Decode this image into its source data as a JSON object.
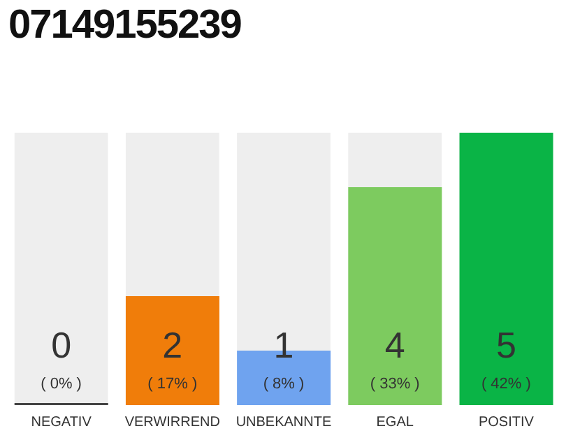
{
  "chart_data": {
    "type": "bar",
    "title": "07149155239",
    "categories": [
      "NEGATIV",
      "VERWIRREND",
      "UNBEKANNTE",
      "EGAL",
      "POSITIV"
    ],
    "values": [
      0,
      2,
      1,
      4,
      5
    ],
    "colors": [
      "#444444",
      "#f07d0a",
      "#6fa3ef",
      "#7dcb5f",
      "#0ab446"
    ],
    "value_labels": [
      "0\n( 0% )",
      "2\n( 17% )",
      "1\n( 8% )",
      "4\n( 33% )",
      "5\n( 42% )"
    ],
    "ylim": [
      0,
      5
    ],
    "grid": false,
    "legend": false
  }
}
